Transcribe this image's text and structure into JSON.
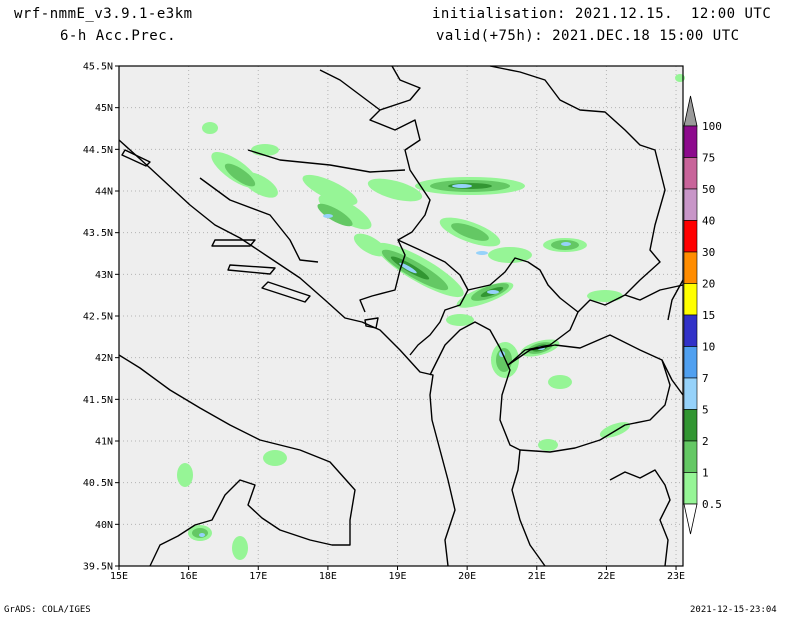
{
  "header": {
    "model": "wrf-nmmE_v3.9.1-e3km",
    "field": "6-h Acc.Prec.",
    "init": "initialisation: 2021.12.15.  12:00 UTC",
    "valid": "valid(+75h): 2021.DEC.18 15:00 UTC"
  },
  "footer": {
    "left": "GrADS: COLA/IGES",
    "right": "2021-12-15-23:04"
  },
  "map": {
    "lon_labels": [
      "15E",
      "16E",
      "17E",
      "18E",
      "19E",
      "20E",
      "21E",
      "22E",
      "23E"
    ],
    "lat_labels": [
      "45.5N",
      "45N",
      "44.5N",
      "44N",
      "43.5N",
      "43N",
      "42.5N",
      "42N",
      "41.5N",
      "41N",
      "40.5N",
      "40N",
      "39.5N"
    ],
    "colorbar": {
      "labels": [
        "100",
        "75",
        "50",
        "40",
        "30",
        "20",
        "15",
        "10",
        "7",
        "5",
        "2",
        "1",
        "0.5"
      ],
      "colors": [
        "#9a9a9a",
        "#8c0a8c",
        "#c8649a",
        "#c896c8",
        "#ff0000",
        "#ff8c00",
        "#ffff00",
        "#3232c8",
        "#50a0f0",
        "#96d2fa",
        "#329632",
        "#64c864",
        "#96f596",
        "#ffffff"
      ]
    }
  }
}
